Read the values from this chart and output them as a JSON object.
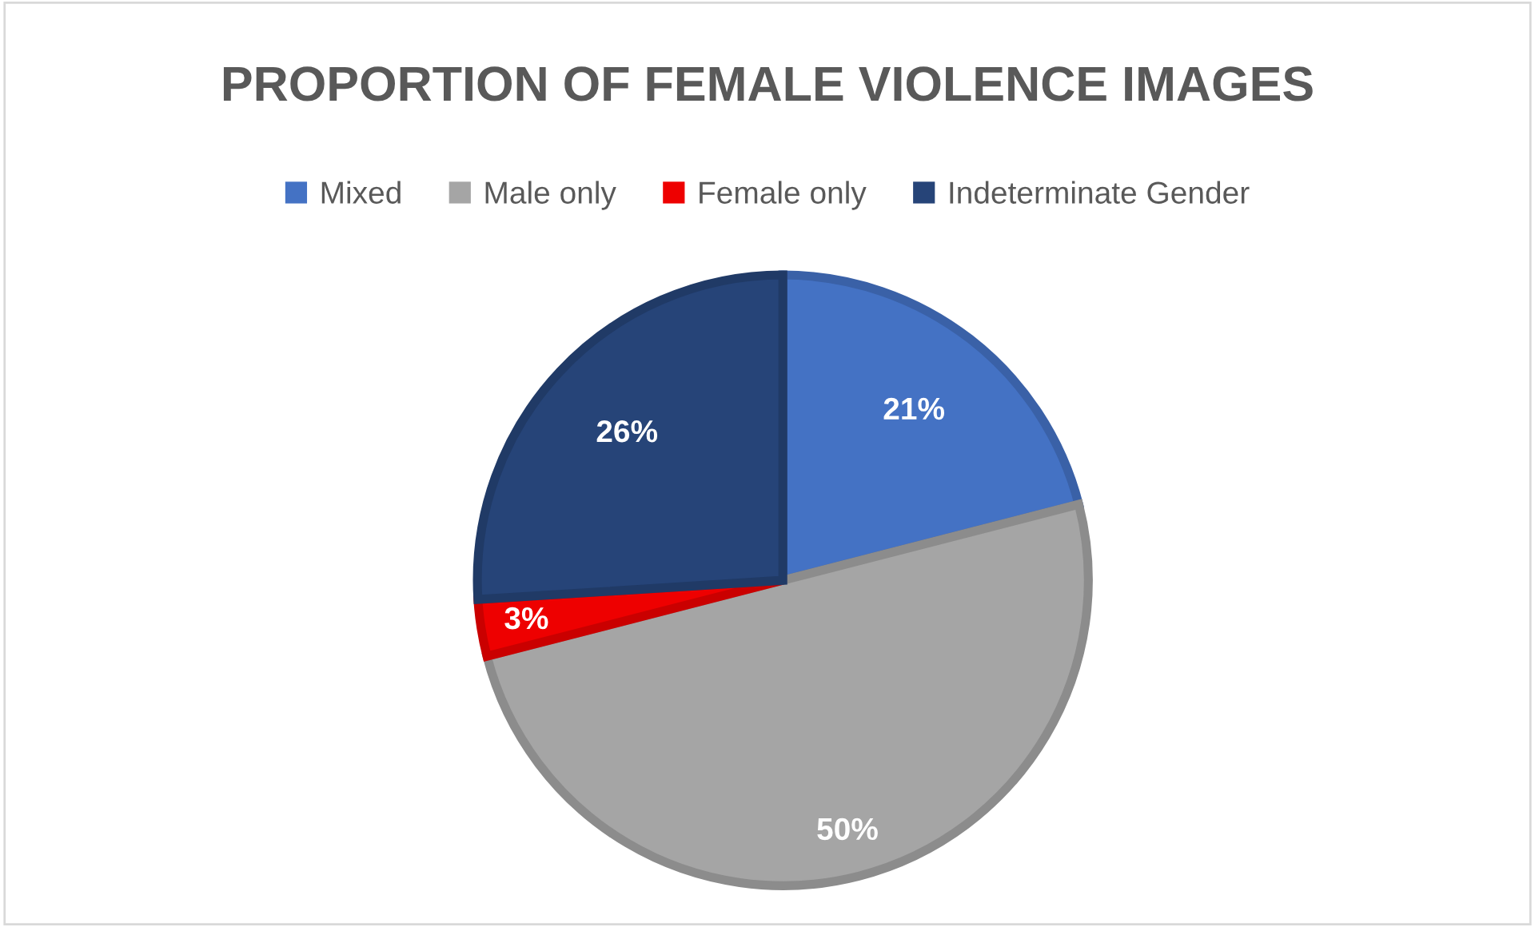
{
  "chart_data": {
    "type": "pie",
    "title": "PROPORTION OF FEMALE VIOLENCE IMAGES",
    "categories": [
      "Mixed",
      "Male only",
      "Female only",
      "Indeterminate Gender"
    ],
    "values": [
      21,
      50,
      3,
      26
    ],
    "colors": [
      "#4472c4",
      "#a5a5a5",
      "#ee0000",
      "#264478"
    ],
    "value_labels": [
      "21%",
      "50%",
      "3%",
      "26%"
    ],
    "legend": "top"
  }
}
